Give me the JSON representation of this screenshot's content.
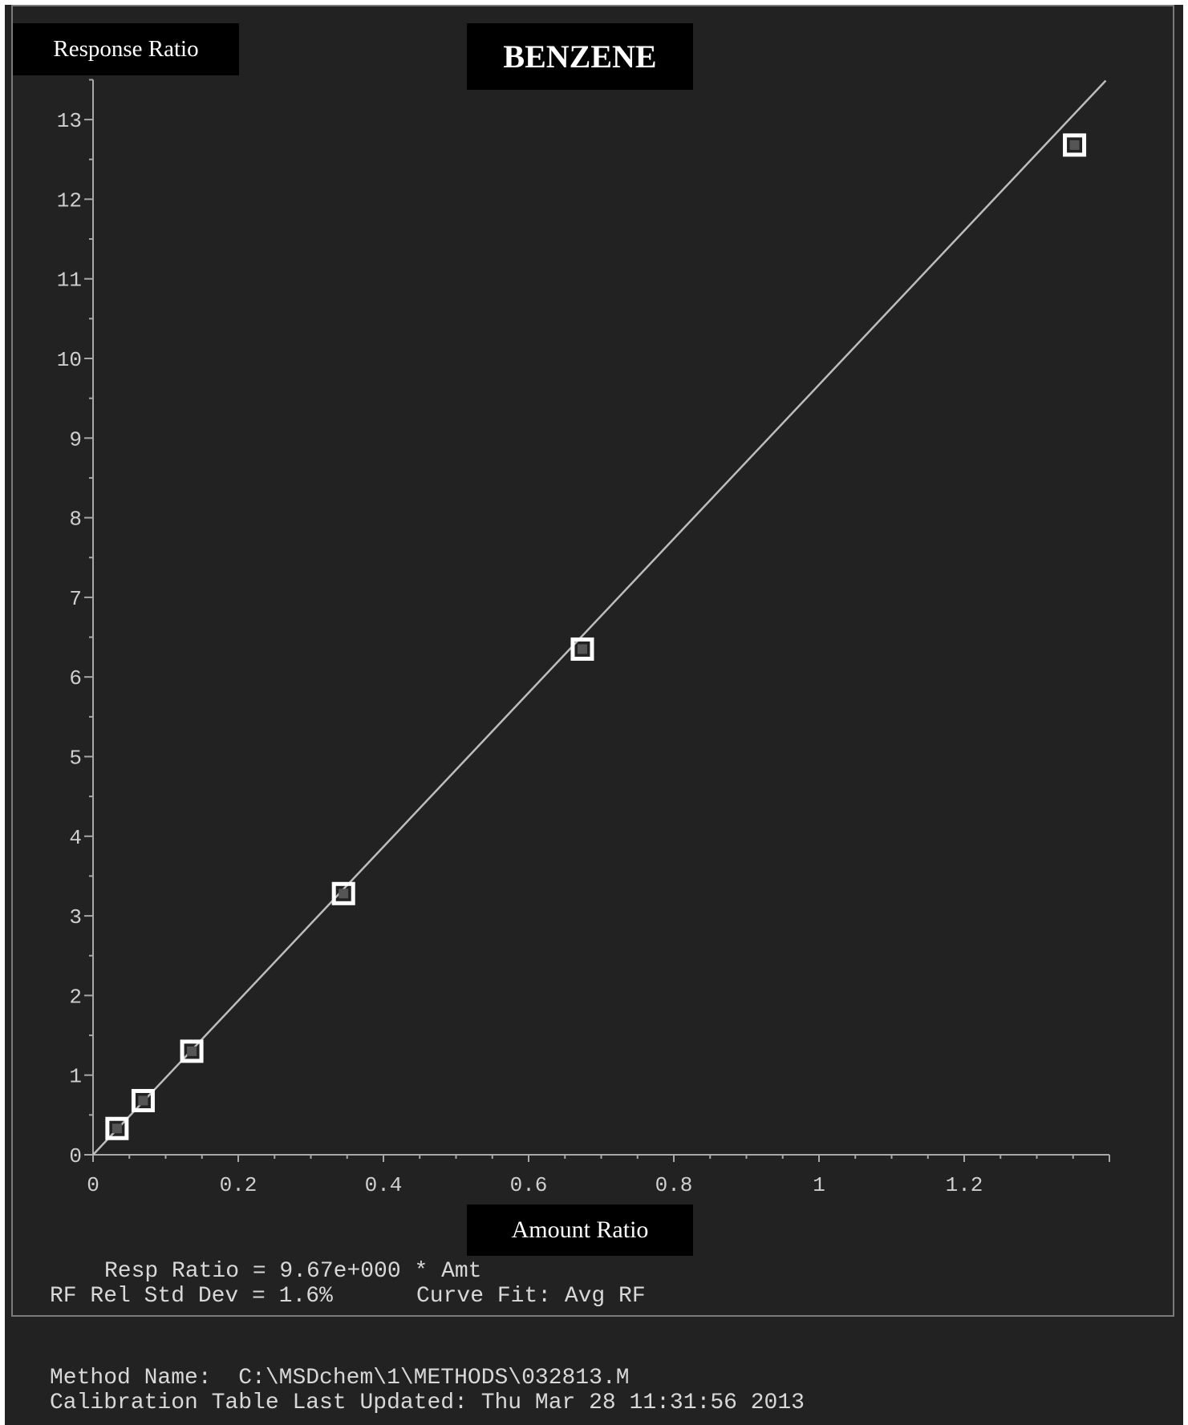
{
  "chart_data": {
    "type": "scatter",
    "title": "BENZENE",
    "xlabel": "Amount  Ratio",
    "ylabel": "Response Ratio",
    "xlim": [
      0,
      1.4
    ],
    "ylim": [
      0,
      13.5
    ],
    "x_ticks": [
      0,
      0.2,
      0.4,
      0.6,
      0.8,
      1,
      1.2
    ],
    "x_tick_labels": [
      "0",
      "0.2",
      "0.4",
      "0.6",
      "0.8",
      "1",
      "1.2"
    ],
    "y_ticks": [
      0,
      1,
      2,
      3,
      4,
      5,
      6,
      7,
      8,
      9,
      10,
      11,
      12,
      13
    ],
    "y_tick_labels": [
      "0",
      "1",
      "2",
      "3",
      "4",
      "5",
      "6",
      "7",
      "8",
      "9",
      "10",
      "11",
      "12",
      "13"
    ],
    "points": [
      {
        "x": 0.033,
        "y": 0.33
      },
      {
        "x": 0.069,
        "y": 0.68
      },
      {
        "x": 0.136,
        "y": 1.3
      },
      {
        "x": 0.345,
        "y": 3.28
      },
      {
        "x": 0.674,
        "y": 6.35
      },
      {
        "x": 1.352,
        "y": 12.68
      }
    ],
    "fit_line": {
      "slope": 9.67,
      "intercept": 0,
      "x_range": [
        0,
        1.395
      ]
    },
    "grid": false,
    "legend": "none"
  },
  "annotations": {
    "equation": "Resp Ratio = 9.67e+000 * Amt",
    "rf_rsd": "RF Rel Std Dev = 1.6%",
    "curve_fit": "Curve Fit: Avg RF"
  },
  "footer": {
    "method_name": "Method Name:  C:\\MSDchem\\1\\METHODS\\032813.M",
    "calibration_updated": "Calibration Table Last Updated: Thu Mar 28 11:31:56 2013"
  },
  "colors": {
    "background": "#222222",
    "axis": "#a8a8a8",
    "fit_line": "#bdbdbd",
    "marker": "#ffffff",
    "label_box": "#000000"
  }
}
